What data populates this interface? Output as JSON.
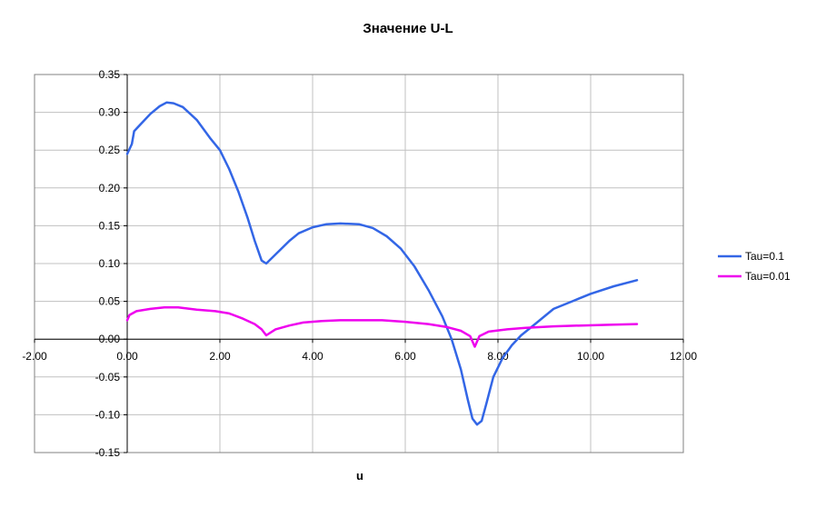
{
  "chart_data": {
    "type": "line",
    "title": "Значение U-L",
    "xlabel": "u",
    "ylabel": "",
    "xlim": [
      -2,
      12
    ],
    "ylim": [
      -0.15,
      0.35
    ],
    "x_ticks": [
      "-2.00",
      "0.00",
      "2.00",
      "4.00",
      "6.00",
      "8.00",
      "10.00",
      "12.00"
    ],
    "y_ticks": [
      "0.35",
      "0.30",
      "0.25",
      "0.20",
      "0.15",
      "0.10",
      "0.05",
      "0.00",
      "-0.05",
      "-0.10",
      "-0.15"
    ],
    "grid": true,
    "legend": "right",
    "series": [
      {
        "name": "Tau=0.1",
        "color": "#3366e6",
        "points": [
          [
            0.0,
            0.245
          ],
          [
            0.1,
            0.258
          ],
          [
            0.15,
            0.275
          ],
          [
            0.3,
            0.285
          ],
          [
            0.5,
            0.298
          ],
          [
            0.7,
            0.308
          ],
          [
            0.85,
            0.313
          ],
          [
            1.0,
            0.312
          ],
          [
            1.2,
            0.307
          ],
          [
            1.5,
            0.29
          ],
          [
            1.8,
            0.265
          ],
          [
            2.0,
            0.25
          ],
          [
            2.2,
            0.225
          ],
          [
            2.4,
            0.195
          ],
          [
            2.6,
            0.16
          ],
          [
            2.75,
            0.13
          ],
          [
            2.9,
            0.104
          ],
          [
            3.0,
            0.1
          ],
          [
            3.2,
            0.112
          ],
          [
            3.5,
            0.13
          ],
          [
            3.7,
            0.14
          ],
          [
            4.0,
            0.148
          ],
          [
            4.3,
            0.152
          ],
          [
            4.6,
            0.153
          ],
          [
            5.0,
            0.152
          ],
          [
            5.3,
            0.147
          ],
          [
            5.6,
            0.136
          ],
          [
            5.9,
            0.12
          ],
          [
            6.2,
            0.096
          ],
          [
            6.5,
            0.065
          ],
          [
            6.8,
            0.03
          ],
          [
            7.0,
            0.0
          ],
          [
            7.2,
            -0.04
          ],
          [
            7.35,
            -0.08
          ],
          [
            7.45,
            -0.105
          ],
          [
            7.55,
            -0.113
          ],
          [
            7.65,
            -0.108
          ],
          [
            7.75,
            -0.085
          ],
          [
            7.9,
            -0.05
          ],
          [
            8.1,
            -0.025
          ],
          [
            8.3,
            -0.008
          ],
          [
            8.5,
            0.005
          ],
          [
            8.8,
            0.02
          ],
          [
            9.2,
            0.04
          ],
          [
            9.6,
            0.05
          ],
          [
            10.0,
            0.06
          ],
          [
            10.5,
            0.07
          ],
          [
            11.0,
            0.078
          ]
        ]
      },
      {
        "name": "Tau=0.01",
        "color": "#ee00ee",
        "points": [
          [
            0.0,
            0.025
          ],
          [
            0.05,
            0.032
          ],
          [
            0.2,
            0.037
          ],
          [
            0.5,
            0.04
          ],
          [
            0.8,
            0.042
          ],
          [
            1.1,
            0.042
          ],
          [
            1.5,
            0.039
          ],
          [
            1.9,
            0.037
          ],
          [
            2.2,
            0.034
          ],
          [
            2.5,
            0.027
          ],
          [
            2.75,
            0.02
          ],
          [
            2.9,
            0.013
          ],
          [
            3.0,
            0.005
          ],
          [
            3.2,
            0.013
          ],
          [
            3.5,
            0.018
          ],
          [
            3.8,
            0.022
          ],
          [
            4.2,
            0.024
          ],
          [
            4.6,
            0.025
          ],
          [
            5.0,
            0.025
          ],
          [
            5.5,
            0.025
          ],
          [
            6.0,
            0.023
          ],
          [
            6.5,
            0.02
          ],
          [
            6.9,
            0.016
          ],
          [
            7.2,
            0.011
          ],
          [
            7.4,
            0.004
          ],
          [
            7.5,
            -0.01
          ],
          [
            7.6,
            0.004
          ],
          [
            7.8,
            0.01
          ],
          [
            8.2,
            0.013
          ],
          [
            8.6,
            0.015
          ],
          [
            9.2,
            0.017
          ],
          [
            9.8,
            0.018
          ],
          [
            10.4,
            0.019
          ],
          [
            11.0,
            0.02
          ]
        ]
      }
    ]
  }
}
